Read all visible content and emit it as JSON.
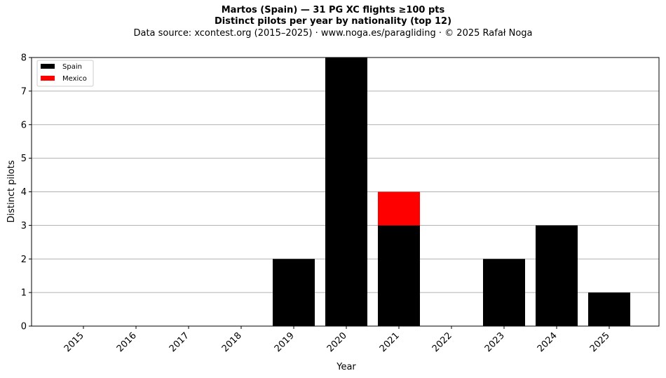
{
  "chart_data": {
    "type": "bar",
    "title": "Martos (Spain)  —  31 PG XC flights ≥100 pts",
    "subtitle": "Distinct pilots per year by nationality (top 12)",
    "source": "Data source: xcontest.org (2015–2025)  ·  www.noga.es/paragliding  ·  © 2025 Rafał Noga",
    "xlabel": "Year",
    "ylabel": "Distinct pilots",
    "stacked": true,
    "categories": [
      "2015",
      "2016",
      "2017",
      "2018",
      "2019",
      "2020",
      "2021",
      "2022",
      "2023",
      "2024",
      "2025"
    ],
    "series": [
      {
        "name": "Spain",
        "color": "#000000",
        "values": [
          0,
          0,
          0,
          0,
          2,
          8,
          3,
          0,
          2,
          3,
          1
        ]
      },
      {
        "name": "Mexico",
        "color": "#ff0000",
        "values": [
          0,
          0,
          0,
          0,
          0,
          0,
          1,
          0,
          0,
          0,
          0
        ]
      }
    ],
    "ylim": [
      0,
      8
    ],
    "yticks": [
      0,
      1,
      2,
      3,
      4,
      5,
      6,
      7,
      8
    ],
    "grid": "horizontal",
    "legend": "top-left"
  }
}
